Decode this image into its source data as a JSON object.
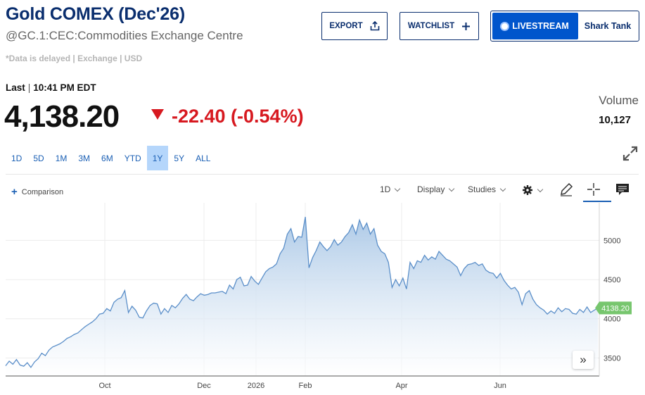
{
  "header": {
    "title": "Gold COMEX (Dec'26)",
    "symbol_line": "@GC.1:CEC:Commodities Exchange Centre",
    "delayed_note": "*Data is delayed | Exchange | USD",
    "export_label": "EXPORT",
    "watchlist_label": "WATCHLIST",
    "livestream_label": "LIVESTREAM",
    "show_label": "Shark Tank"
  },
  "quote": {
    "last_label": "Last",
    "last_time": "10:41 PM EDT",
    "price": "4,138.20",
    "change": "-22.40 (-0.54%)",
    "volume_label": "Volume",
    "volume_value": "10,127",
    "down_color": "#d71920"
  },
  "ranges": [
    "1D",
    "5D",
    "1M",
    "3M",
    "6M",
    "YTD",
    "1Y",
    "5Y",
    "ALL"
  ],
  "active_range": "1Y",
  "toolbar": {
    "comparison_label": "Comparison",
    "interval_label": "1D",
    "display_label": "Display",
    "studies_label": "Studies",
    "icons": [
      "gear-icon",
      "pencil-icon",
      "crosshair-icon",
      "comment-icon"
    ]
  },
  "chart_data": {
    "type": "area",
    "x_ticks": [
      "Oct",
      "Dec",
      "2026",
      "Feb",
      "Apr",
      "Jun"
    ],
    "y_ticks": [
      3500,
      4000,
      4500,
      5000
    ],
    "ylim": [
      3270,
      5480
    ],
    "last_value_label": "4138.20",
    "last_value": 4138.2,
    "line_color": "#5b8fc9",
    "fill_top_color": "#a9c7e6",
    "last_badge_color": "#77c66e",
    "grid": true,
    "series": [
      {
        "values": [
          3400,
          3460,
          3420,
          3480,
          3410,
          3395,
          3440,
          3380,
          3450,
          3490,
          3560,
          3530,
          3600,
          3640,
          3660,
          3680,
          3710,
          3750,
          3770,
          3800,
          3820,
          3860,
          3900,
          3930,
          3960,
          4000,
          4060,
          4070,
          4130,
          4100,
          4210,
          4250,
          4270,
          4360,
          4080,
          4160,
          4110,
          4020,
          4010,
          4100,
          4170,
          4200,
          4190,
          4060,
          4130,
          4080,
          4170,
          4140,
          4190,
          4260,
          4310,
          4250,
          4230,
          4280,
          4320,
          4300,
          4310,
          4330,
          4330,
          4340,
          4350,
          4320,
          4430,
          4380,
          4500,
          4530,
          4420,
          4430,
          4540,
          4480,
          4440,
          4520,
          4600,
          4640,
          4660,
          4700,
          4830,
          4900,
          5080,
          5150,
          4980,
          5050,
          5040,
          5300,
          4650,
          4780,
          4870,
          4980,
          4920,
          4870,
          4920,
          5010,
          4940,
          4980,
          5050,
          5100,
          5200,
          5080,
          5260,
          5140,
          5220,
          5080,
          5150,
          4940,
          4860,
          4830,
          4720,
          4400,
          4500,
          4420,
          4520,
          4380,
          4720,
          4640,
          4740,
          4720,
          4810,
          4750,
          4790,
          4760,
          4860,
          4810,
          4760,
          4740,
          4700,
          4660,
          4550,
          4640,
          4690,
          4700,
          4720,
          4680,
          4700,
          4620,
          4590,
          4580,
          4520,
          4580,
          4490,
          4430,
          4380,
          4400,
          4340,
          4180,
          4320,
          4360,
          4250,
          4180,
          4140,
          4110,
          4060,
          4100,
          4070,
          4140,
          4090,
          4130,
          4120,
          4070,
          4060,
          4120,
          4080,
          4150,
          4080,
          4110,
          4138.2
        ]
      }
    ]
  }
}
